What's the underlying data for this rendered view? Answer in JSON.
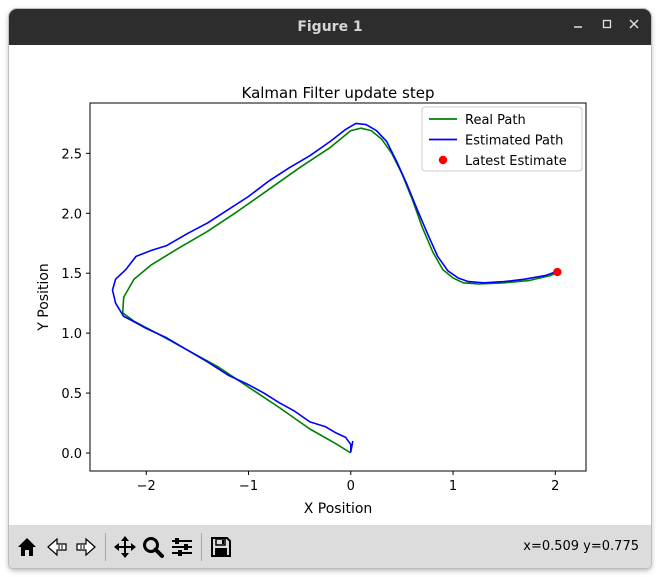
{
  "window": {
    "title": "Figure 1",
    "minimize_icon": "minimize-icon",
    "maximize_icon": "maximize-icon",
    "close_icon": "close-icon"
  },
  "toolbar": {
    "buttons": [
      "home-icon",
      "back-arrow-icon",
      "forward-arrow-icon",
      "pan-move-icon",
      "zoom-magnifier-icon",
      "configure-subplots-icon",
      "save-floppy-icon"
    ],
    "coordinates": "x=0.509 y=0.775"
  },
  "chart_data": {
    "type": "line",
    "title": "Kalman Filter update step",
    "xlabel": "X Position",
    "ylabel": "Y Position",
    "xlim": [
      -2.55,
      2.3
    ],
    "ylim": [
      -0.15,
      2.92
    ],
    "xticks": [
      -2,
      -1,
      0,
      1,
      2
    ],
    "xtick_labels": [
      "−2",
      "−1",
      "0",
      "1",
      "2"
    ],
    "yticks": [
      0.0,
      0.5,
      1.0,
      1.5,
      2.0,
      2.5
    ],
    "ytick_labels": [
      "0.0",
      "0.5",
      "1.0",
      "1.5",
      "2.0",
      "2.5"
    ],
    "grid": false,
    "legend_position": "upper right",
    "series": [
      {
        "name": "Real Path",
        "color": "#008000",
        "type": "line",
        "points": [
          [
            0.0,
            0.0
          ],
          [
            -0.15,
            0.08
          ],
          [
            -0.4,
            0.2
          ],
          [
            -0.7,
            0.38
          ],
          [
            -1.0,
            0.55
          ],
          [
            -1.3,
            0.72
          ],
          [
            -1.6,
            0.86
          ],
          [
            -1.9,
            1.0
          ],
          [
            -2.12,
            1.1
          ],
          [
            -2.23,
            1.17
          ],
          [
            -2.22,
            1.3
          ],
          [
            -2.12,
            1.45
          ],
          [
            -1.95,
            1.57
          ],
          [
            -1.7,
            1.7
          ],
          [
            -1.4,
            1.85
          ],
          [
            -1.1,
            2.02
          ],
          [
            -0.8,
            2.2
          ],
          [
            -0.5,
            2.38
          ],
          [
            -0.2,
            2.55
          ],
          [
            0.0,
            2.69
          ],
          [
            0.1,
            2.71
          ],
          [
            0.2,
            2.69
          ],
          [
            0.3,
            2.62
          ],
          [
            0.4,
            2.5
          ],
          [
            0.5,
            2.33
          ],
          [
            0.6,
            2.12
          ],
          [
            0.7,
            1.88
          ],
          [
            0.8,
            1.68
          ],
          [
            0.9,
            1.53
          ],
          [
            1.0,
            1.46
          ],
          [
            1.1,
            1.42
          ],
          [
            1.25,
            1.41
          ],
          [
            1.5,
            1.42
          ],
          [
            1.75,
            1.44
          ],
          [
            1.95,
            1.48
          ],
          [
            2.03,
            1.51
          ]
        ]
      },
      {
        "name": "Estimated Path",
        "color": "#0000ff",
        "type": "line",
        "points": [
          [
            0.02,
            0.1
          ],
          [
            0.0,
            0.01
          ],
          [
            0.0,
            0.07
          ],
          [
            -0.05,
            0.13
          ],
          [
            -0.15,
            0.17
          ],
          [
            -0.25,
            0.22
          ],
          [
            -0.4,
            0.26
          ],
          [
            -0.55,
            0.35
          ],
          [
            -0.7,
            0.42
          ],
          [
            -0.85,
            0.5
          ],
          [
            -1.0,
            0.57
          ],
          [
            -1.2,
            0.65
          ],
          [
            -1.4,
            0.76
          ],
          [
            -1.6,
            0.86
          ],
          [
            -1.8,
            0.96
          ],
          [
            -2.0,
            1.04
          ],
          [
            -2.15,
            1.11
          ],
          [
            -2.22,
            1.14
          ],
          [
            -2.3,
            1.25
          ],
          [
            -2.33,
            1.36
          ],
          [
            -2.3,
            1.45
          ],
          [
            -2.2,
            1.53
          ],
          [
            -2.1,
            1.64
          ],
          [
            -1.95,
            1.69
          ],
          [
            -1.8,
            1.73
          ],
          [
            -1.6,
            1.83
          ],
          [
            -1.4,
            1.92
          ],
          [
            -1.2,
            2.03
          ],
          [
            -1.0,
            2.14
          ],
          [
            -0.8,
            2.27
          ],
          [
            -0.6,
            2.38
          ],
          [
            -0.4,
            2.48
          ],
          [
            -0.2,
            2.6
          ],
          [
            -0.05,
            2.7
          ],
          [
            0.05,
            2.75
          ],
          [
            0.15,
            2.74
          ],
          [
            0.25,
            2.69
          ],
          [
            0.35,
            2.6
          ],
          [
            0.45,
            2.43
          ],
          [
            0.55,
            2.24
          ],
          [
            0.65,
            2.03
          ],
          [
            0.75,
            1.83
          ],
          [
            0.85,
            1.64
          ],
          [
            0.95,
            1.52
          ],
          [
            1.05,
            1.46
          ],
          [
            1.15,
            1.43
          ],
          [
            1.3,
            1.42
          ],
          [
            1.5,
            1.43
          ],
          [
            1.7,
            1.45
          ],
          [
            1.9,
            1.48
          ],
          [
            2.0,
            1.51
          ],
          [
            2.05,
            1.5
          ]
        ]
      },
      {
        "name": "Latest Estimate",
        "color": "#ff0000",
        "type": "scatter",
        "points": [
          [
            2.02,
            1.51
          ]
        ]
      }
    ]
  }
}
